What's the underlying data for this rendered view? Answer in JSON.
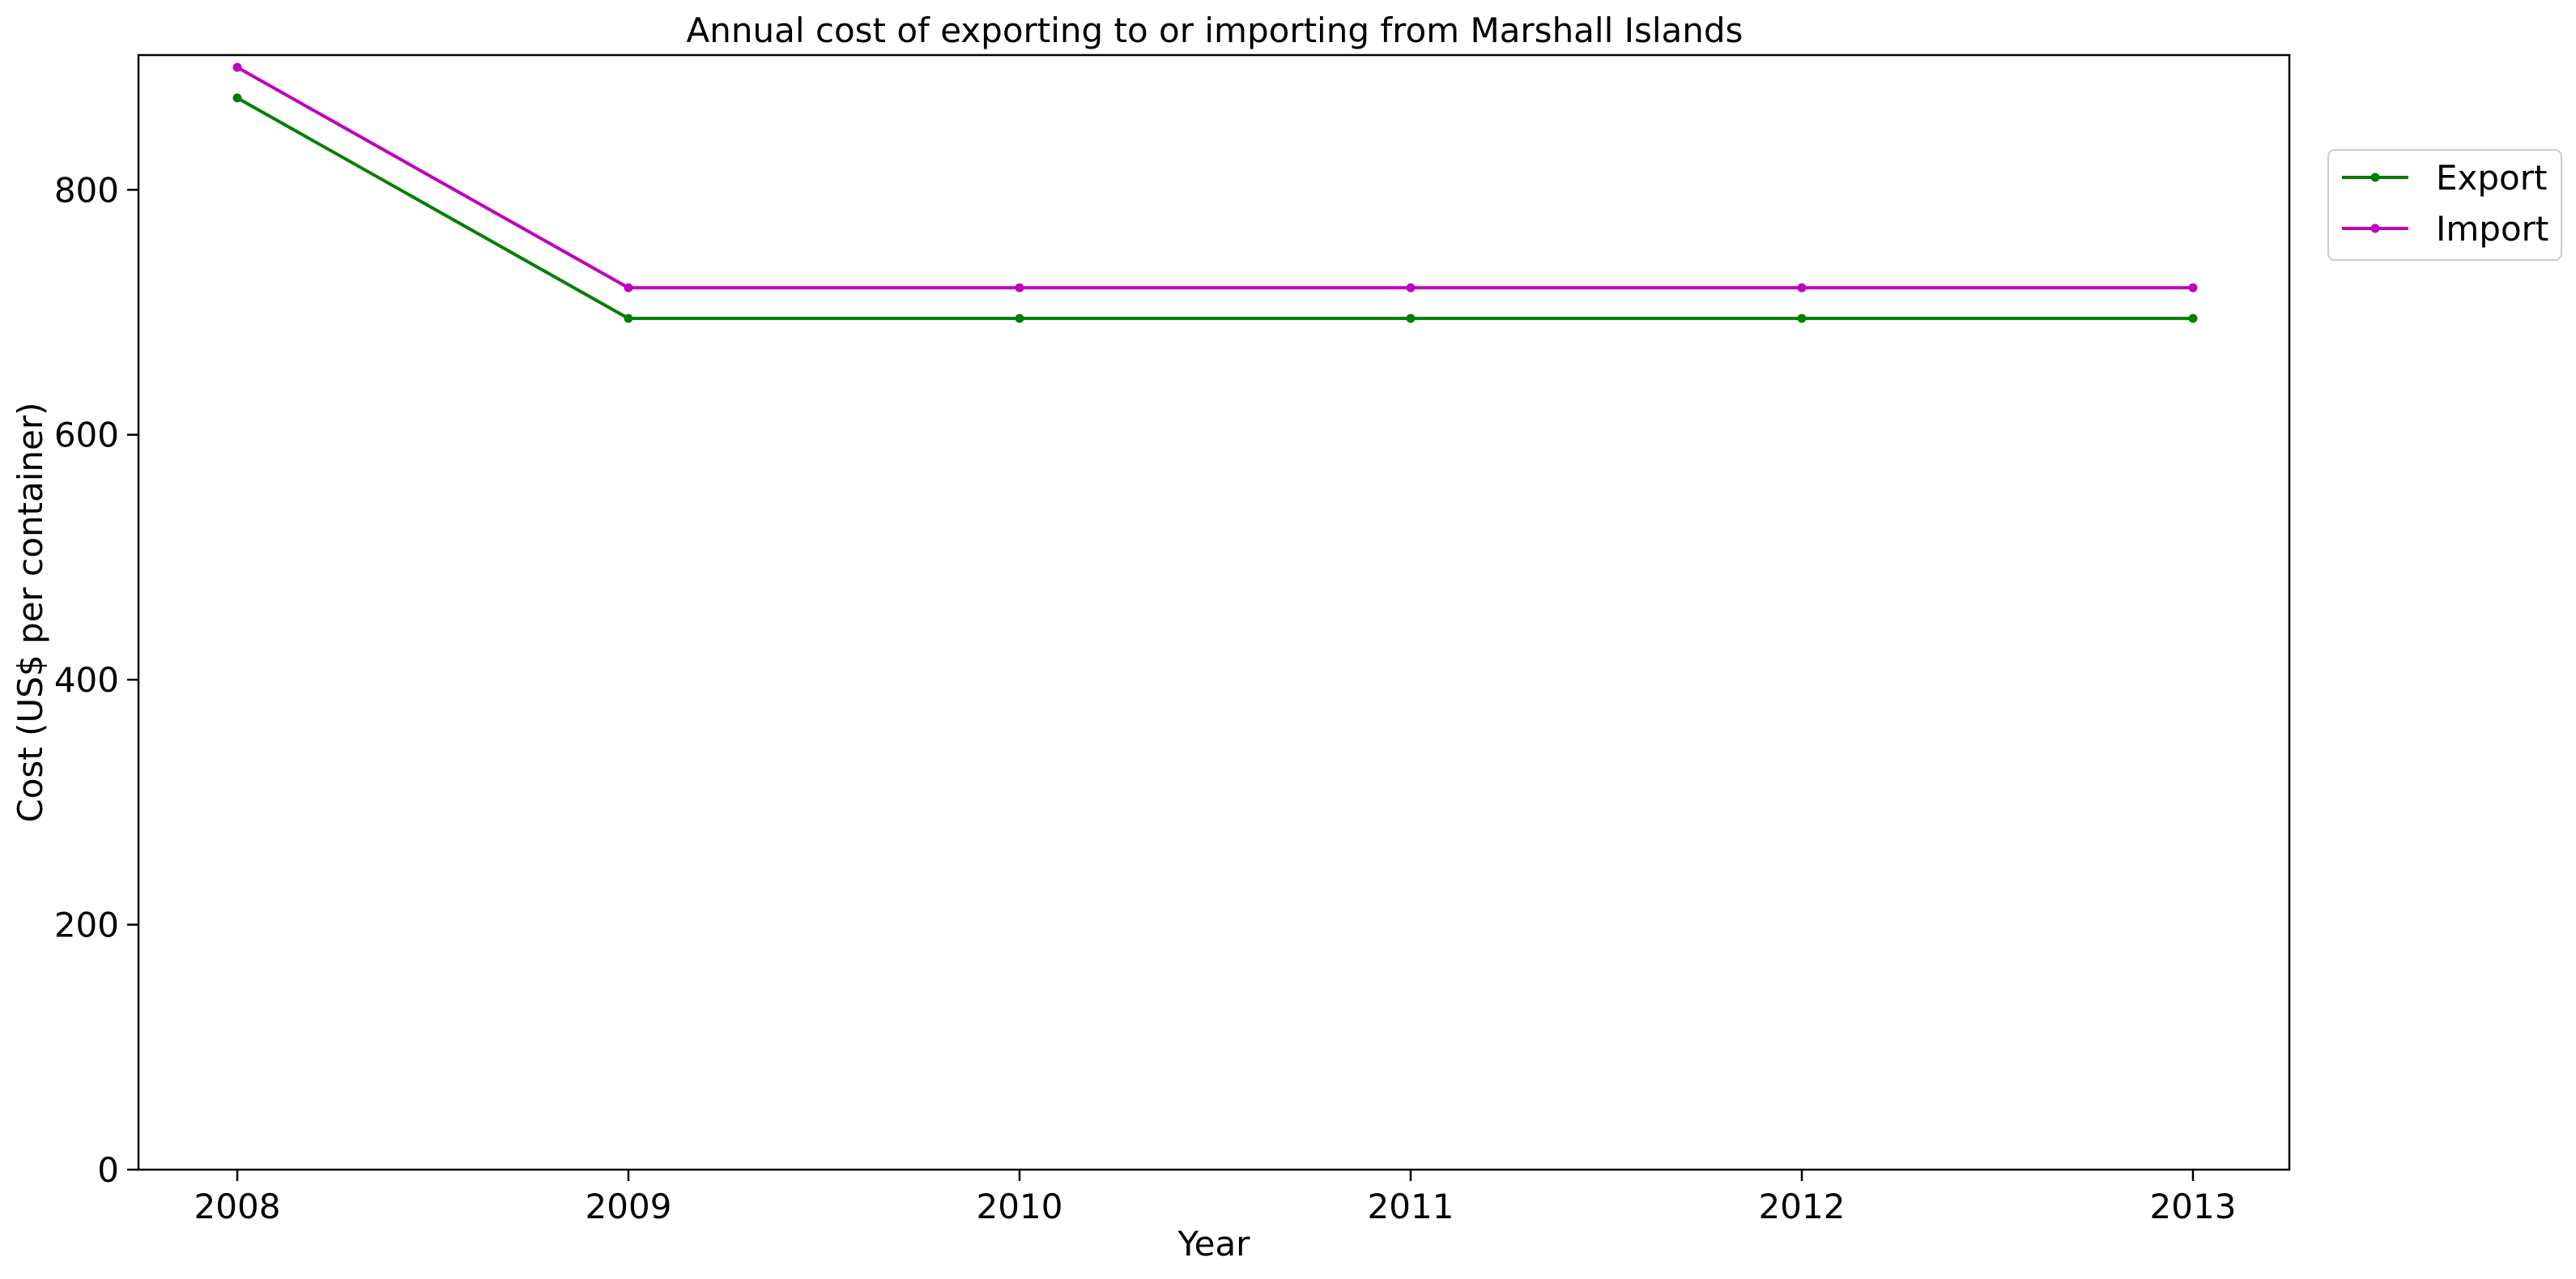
{
  "chart_data": {
    "type": "line",
    "title": "Annual cost of exporting to or importing from Marshall Islands",
    "xlabel": "Year",
    "ylabel": "Cost (US$ per container)",
    "x": [
      "2008",
      "2009",
      "2010",
      "2011",
      "2012",
      "2013"
    ],
    "ylim": [
      0,
      910
    ],
    "yticks": [
      0,
      200,
      400,
      600,
      800
    ],
    "grid": false,
    "legend_position": "upper right, outside plot area",
    "series": [
      {
        "name": "Export",
        "color": "#008000",
        "values": [
          875,
          695,
          695,
          695,
          695,
          695
        ]
      },
      {
        "name": "Import",
        "color": "#bf00bf",
        "values": [
          900,
          720,
          720,
          720,
          720,
          720
        ]
      }
    ]
  }
}
